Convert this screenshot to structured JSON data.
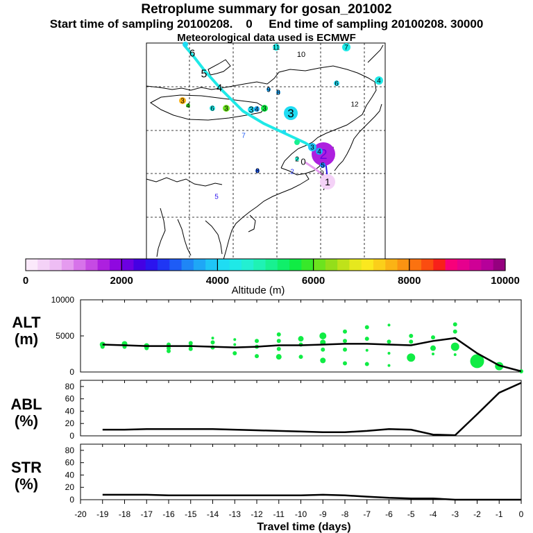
{
  "header": {
    "title": "Retroplume summary for gosan_201002",
    "sampling_line": "Start time of sampling 20100208.    0     End time of sampling 20100208. 30000",
    "met_line": "Meteorological data used is ECMWF"
  },
  "colorbar": {
    "label": "Altitude  (m)",
    "tick_labels": [
      "0",
      "2000",
      "4000",
      "6000",
      "8000",
      "10000"
    ],
    "colors": [
      "#fbe9fb",
      "#f4d2f7",
      "#eebdf4",
      "#e59bef",
      "#d773ea",
      "#c64ae4",
      "#ad20df",
      "#8f08e0",
      "#6c00e2",
      "#4400e3",
      "#2b14ee",
      "#1f36f4",
      "#1e5cf6",
      "#1f86f6",
      "#1fa7f6",
      "#1fc5f6",
      "#1fdcf3",
      "#1fe9e7",
      "#23efd2",
      "#1ff2b4",
      "#18f191",
      "#10ef6a",
      "#10ec44",
      "#38e82a",
      "#6ce31e",
      "#94de1a",
      "#bfe21a",
      "#e6e81e",
      "#fbe81f",
      "#fbcf1a",
      "#fbb315",
      "#fb9312",
      "#fb7210",
      "#fb4c10",
      "#f8201a",
      "#f8007a",
      "#e6008e",
      "#cf0096",
      "#b6009a",
      "#95007f"
    ]
  },
  "map": {
    "trajectory_labels": [
      "1",
      "2",
      "3",
      "4",
      "5",
      "6"
    ],
    "cluster_labels": [
      "1",
      "2",
      "3",
      "4",
      "5",
      "6",
      "7",
      "8",
      "9",
      "10",
      "11",
      "12",
      "13",
      "0"
    ]
  },
  "chart_data": [
    {
      "type": "line",
      "panel": "ALT",
      "ylabel": "ALT\n(m)",
      "ylabel_lines": [
        "ALT",
        "(m)"
      ],
      "ylim": [
        0,
        10000
      ],
      "yticks": [
        0,
        5000,
        10000
      ],
      "ytick_labels": [
        "0",
        "5000",
        "10000"
      ],
      "x": [
        -19,
        -18,
        -17,
        -16,
        -15,
        -14,
        -13,
        -12,
        -11,
        -10,
        -9,
        -8,
        -7,
        -6,
        -5,
        -4,
        -3,
        -2,
        -1,
        0
      ],
      "series": [
        {
          "name": "mean altitude",
          "values": [
            3800,
            3700,
            3600,
            3600,
            3600,
            3500,
            3400,
            3500,
            3700,
            3700,
            3800,
            3900,
            3900,
            3800,
            3700,
            4300,
            4700,
            2600,
            900,
            100
          ]
        }
      ]
    },
    {
      "type": "line",
      "panel": "ABL",
      "ylabel_lines": [
        "ABL",
        "(%)"
      ],
      "ylim": [
        0,
        90
      ],
      "yticks": [
        0,
        20,
        40,
        60,
        80
      ],
      "ytick_labels": [
        "0",
        "20",
        "40",
        "60",
        "80"
      ],
      "x": [
        -19,
        -18,
        -17,
        -16,
        -15,
        -14,
        -13,
        -12,
        -11,
        -10,
        -9,
        -8,
        -7,
        -6,
        -5,
        -4,
        -3,
        -2,
        -1,
        0
      ],
      "series": [
        {
          "name": "ABL fraction",
          "values": [
            10,
            10,
            11,
            11,
            11,
            11,
            10,
            9,
            8,
            7,
            6,
            6,
            8,
            11,
            10,
            2,
            1,
            35,
            70,
            86
          ]
        }
      ]
    },
    {
      "type": "line",
      "panel": "STR",
      "ylabel_lines": [
        "STR",
        "(%)"
      ],
      "ylim": [
        0,
        90
      ],
      "yticks": [
        0,
        20,
        40,
        60,
        80
      ],
      "ytick_labels": [
        "0",
        "20",
        "40",
        "60",
        "80"
      ],
      "x": [
        -19,
        -18,
        -17,
        -16,
        -15,
        -14,
        -13,
        -12,
        -11,
        -10,
        -9,
        -8,
        -7,
        -6,
        -5,
        -4,
        -3,
        -2,
        -1,
        0
      ],
      "series": [
        {
          "name": "stratospheric fraction",
          "values": [
            8,
            8,
            8,
            7,
            7,
            7,
            7,
            7,
            7,
            7,
            8,
            7,
            5,
            3,
            2,
            2,
            0,
            0,
            0,
            0
          ]
        }
      ]
    }
  ],
  "x_axis": {
    "xlabel": "Travel time (days)",
    "tick_labels": [
      "-20",
      "-19",
      "-18",
      "-17",
      "-16",
      "-15",
      "-14",
      "-13",
      "-12",
      "-11",
      "-10",
      "-9",
      "-8",
      "-7",
      "-6",
      "-5",
      "-4",
      "-3",
      "-2",
      "-1",
      "0"
    ]
  }
}
